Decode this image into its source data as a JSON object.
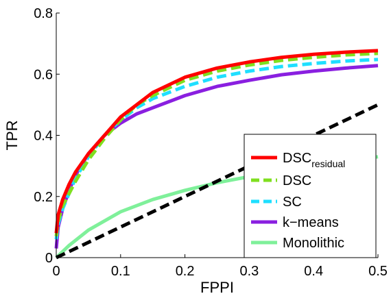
{
  "chart_data": {
    "type": "line",
    "xlabel": "FPPI",
    "ylabel": "TPR",
    "xlim": [
      0,
      0.5
    ],
    "ylim": [
      0,
      0.8
    ],
    "xticks": [
      {
        "value": 0,
        "label": "0"
      },
      {
        "value": 0.1,
        "label": "0.1"
      },
      {
        "value": 0.2,
        "label": "0.2"
      },
      {
        "value": 0.3,
        "label": "0.3"
      },
      {
        "value": 0.4,
        "label": "0.4"
      },
      {
        "value": 0.5,
        "label": "0.5"
      }
    ],
    "yticks": [
      {
        "value": 0,
        "label": "0"
      },
      {
        "value": 0.2,
        "label": "0.2"
      },
      {
        "value": 0.4,
        "label": "0.4"
      },
      {
        "value": 0.6,
        "label": "0.6"
      },
      {
        "value": 0.8,
        "label": "0.8"
      }
    ],
    "grid": false,
    "legend_position": "bottom-right",
    "series": [
      {
        "name": "DSC",
        "name_subscript": "residual",
        "color": "#ff0000",
        "dash": "solid",
        "x": [
          0,
          0.003,
          0.01,
          0.02,
          0.03,
          0.05,
          0.075,
          0.1,
          0.125,
          0.15,
          0.2,
          0.25,
          0.3,
          0.35,
          0.4,
          0.45,
          0.5
        ],
        "y": [
          0.08,
          0.14,
          0.19,
          0.24,
          0.28,
          0.34,
          0.4,
          0.46,
          0.5,
          0.54,
          0.59,
          0.62,
          0.64,
          0.655,
          0.665,
          0.672,
          0.677
        ]
      },
      {
        "name": "DSC",
        "color": "#7fdf1f",
        "dash": "dashed",
        "x": [
          0,
          0.003,
          0.01,
          0.02,
          0.03,
          0.05,
          0.075,
          0.1,
          0.125,
          0.15,
          0.2,
          0.25,
          0.3,
          0.35,
          0.4,
          0.45,
          0.5
        ],
        "y": [
          0.07,
          0.12,
          0.17,
          0.21,
          0.25,
          0.32,
          0.39,
          0.45,
          0.5,
          0.53,
          0.58,
          0.61,
          0.63,
          0.645,
          0.655,
          0.663,
          0.668
        ]
      },
      {
        "name": "SC",
        "color": "#1fdfff",
        "dash": "dashed",
        "x": [
          0,
          0.003,
          0.01,
          0.02,
          0.03,
          0.05,
          0.075,
          0.1,
          0.125,
          0.15,
          0.2,
          0.25,
          0.3,
          0.35,
          0.4,
          0.45,
          0.5
        ],
        "y": [
          0.06,
          0.11,
          0.16,
          0.21,
          0.26,
          0.33,
          0.4,
          0.45,
          0.49,
          0.52,
          0.56,
          0.59,
          0.61,
          0.625,
          0.635,
          0.643,
          0.648
        ]
      },
      {
        "name": "k−means",
        "color": "#8a1fe0",
        "dash": "solid",
        "x": [
          0,
          0.003,
          0.01,
          0.02,
          0.03,
          0.05,
          0.075,
          0.1,
          0.125,
          0.15,
          0.2,
          0.25,
          0.3,
          0.35,
          0.4,
          0.45,
          0.5
        ],
        "y": [
          0.03,
          0.1,
          0.16,
          0.22,
          0.27,
          0.34,
          0.4,
          0.44,
          0.47,
          0.49,
          0.53,
          0.56,
          0.58,
          0.598,
          0.61,
          0.62,
          0.628
        ]
      },
      {
        "name": "Monolithic",
        "color": "#7ff09a",
        "dash": "solid",
        "x": [
          0,
          0.02,
          0.05,
          0.1,
          0.15,
          0.2,
          0.25,
          0.3,
          0.35,
          0.4,
          0.45,
          0.5
        ],
        "y": [
          0.0,
          0.04,
          0.09,
          0.15,
          0.19,
          0.22,
          0.245,
          0.265,
          0.285,
          0.3,
          0.315,
          0.33
        ]
      },
      {
        "name": "",
        "color": "#000000",
        "dash": "dashed",
        "x": [
          0,
          0.5
        ],
        "y": [
          0,
          0.5
        ]
      }
    ]
  }
}
